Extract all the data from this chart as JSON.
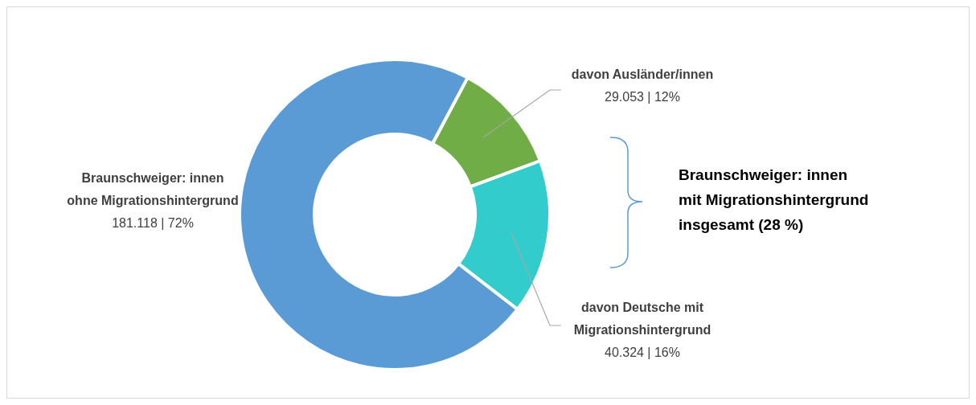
{
  "chart_data": {
    "type": "donut",
    "categories": [
      "davon Ausländer/innen",
      "davon Deutsche mit\nMigrationshintergrund",
      "Braunschweiger: innen\nohne Migrationshintergrund"
    ],
    "values": [
      29053,
      40324,
      181118
    ],
    "value_labels": [
      "29.053 | 12%",
      "40.324 | 16%",
      "181.118 | 72%"
    ],
    "colors": [
      "#70ad47",
      "#33cccc",
      "#5b9bd5"
    ],
    "annotations": [
      "Braunschweiger: innen\nmit Migrationshintergrund\ninsgesamt (28 %)"
    ],
    "legend": false
  }
}
